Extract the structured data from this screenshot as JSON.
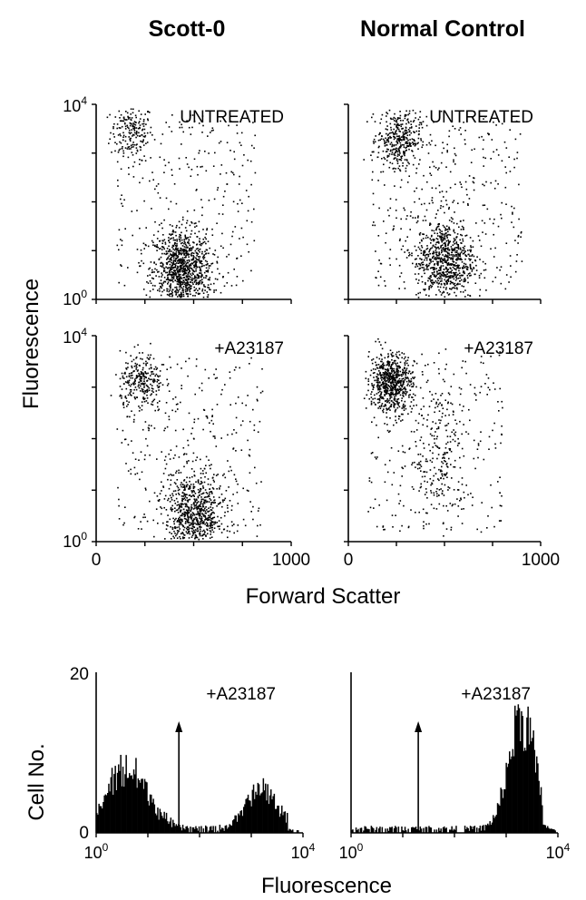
{
  "figure": {
    "column_titles": [
      "Scott-0",
      "Normal Control"
    ],
    "scatter_ylabel": "Fluorescence",
    "scatter_xlabel": "Forward Scatter",
    "hist_ylabel": "Cell No.",
    "hist_xlabel": "Fluorescence"
  },
  "chart_data": [
    {
      "type": "scatter",
      "panel": "Scott-0 untreated",
      "annotation": "UNTREATED",
      "xlim": [
        0,
        1000
      ],
      "ylim_log10": [
        0,
        4
      ],
      "y_ticks": [
        "10^0",
        "10^4"
      ],
      "series": [
        {
          "values": [
            {
              "cluster": "upper",
              "x_center": 180,
              "y_center_log10": 3.45,
              "count": 180
            },
            {
              "cluster": "lower",
              "x_center": 440,
              "y_center_log10": 0.6,
              "count": 1000
            },
            {
              "cluster": "scattered",
              "x_range": [
                100,
                820
              ],
              "y_range_log10": [
                0.2,
                3.8
              ],
              "count": 280
            }
          ]
        }
      ]
    },
    {
      "type": "scatter",
      "panel": "Normal Control untreated",
      "annotation": "UNTREATED",
      "xlim": [
        0,
        1000
      ],
      "ylim_log10": [
        0,
        4
      ],
      "series": [
        {
          "values": [
            {
              "cluster": "upper",
              "x_center": 260,
              "y_center_log10": 3.3,
              "count": 320
            },
            {
              "cluster": "lower",
              "x_center": 500,
              "y_center_log10": 0.8,
              "count": 750
            },
            {
              "cluster": "scattered",
              "x_range": [
                120,
                900
              ],
              "y_range_log10": [
                0.2,
                3.9
              ],
              "count": 380
            }
          ]
        }
      ]
    },
    {
      "type": "scatter",
      "panel": "Scott-0 +A23187",
      "annotation": "+A23187",
      "xlim": [
        0,
        1000
      ],
      "ylim_log10": [
        0,
        4
      ],
      "y_ticks": [
        "10^0",
        "10^4"
      ],
      "series": [
        {
          "values": [
            {
              "cluster": "upper",
              "x_center": 230,
              "y_center_log10": 3.1,
              "count": 260
            },
            {
              "cluster": "lower",
              "x_center": 500,
              "y_center_log10": 0.5,
              "count": 780
            },
            {
              "cluster": "scattered",
              "x_range": [
                100,
                850
              ],
              "y_range_log10": [
                0.2,
                3.6
              ],
              "count": 300
            }
          ]
        }
      ]
    },
    {
      "type": "scatter",
      "panel": "Normal Control +A23187",
      "annotation": "+A23187",
      "xlim": [
        0,
        1000
      ],
      "ylim_log10": [
        0,
        4
      ],
      "series": [
        {
          "values": [
            {
              "cluster": "upper",
              "x_center": 220,
              "y_center_log10": 3.1,
              "count": 650
            },
            {
              "cluster": "tail",
              "x_center": 480,
              "y_center_log10": 1.7,
              "count": 230
            },
            {
              "cluster": "scattered",
              "x_range": [
                100,
                800
              ],
              "y_range_log10": [
                0.2,
                3.7
              ],
              "count": 250
            }
          ]
        }
      ]
    },
    {
      "type": "bar",
      "panel": "Scott-0 histogram",
      "annotation": "+A23187",
      "xlim_log10": [
        0,
        4
      ],
      "ylim": [
        0,
        20
      ],
      "x_ticks": [
        "10^0",
        "10^4"
      ],
      "y_ticks": [
        "0",
        "20"
      ],
      "marker_arrow_log10": 1.6,
      "series": [
        {
          "values": [
            {
              "mode_log10": 0.6,
              "peak": 9,
              "width": 0.4
            },
            {
              "mode_log10": 3.2,
              "peak": 6,
              "width": 0.3
            }
          ]
        }
      ]
    },
    {
      "type": "bar",
      "panel": "Normal Control histogram",
      "annotation": "+A23187",
      "xlim_log10": [
        0,
        4
      ],
      "ylim": [
        0,
        20
      ],
      "x_ticks": [
        "10^0",
        "10^4"
      ],
      "marker_arrow_log10": 1.3,
      "series": [
        {
          "values": [
            {
              "mode_log10": 3.3,
              "peak": 17,
              "width": 0.25
            }
          ]
        }
      ]
    }
  ]
}
